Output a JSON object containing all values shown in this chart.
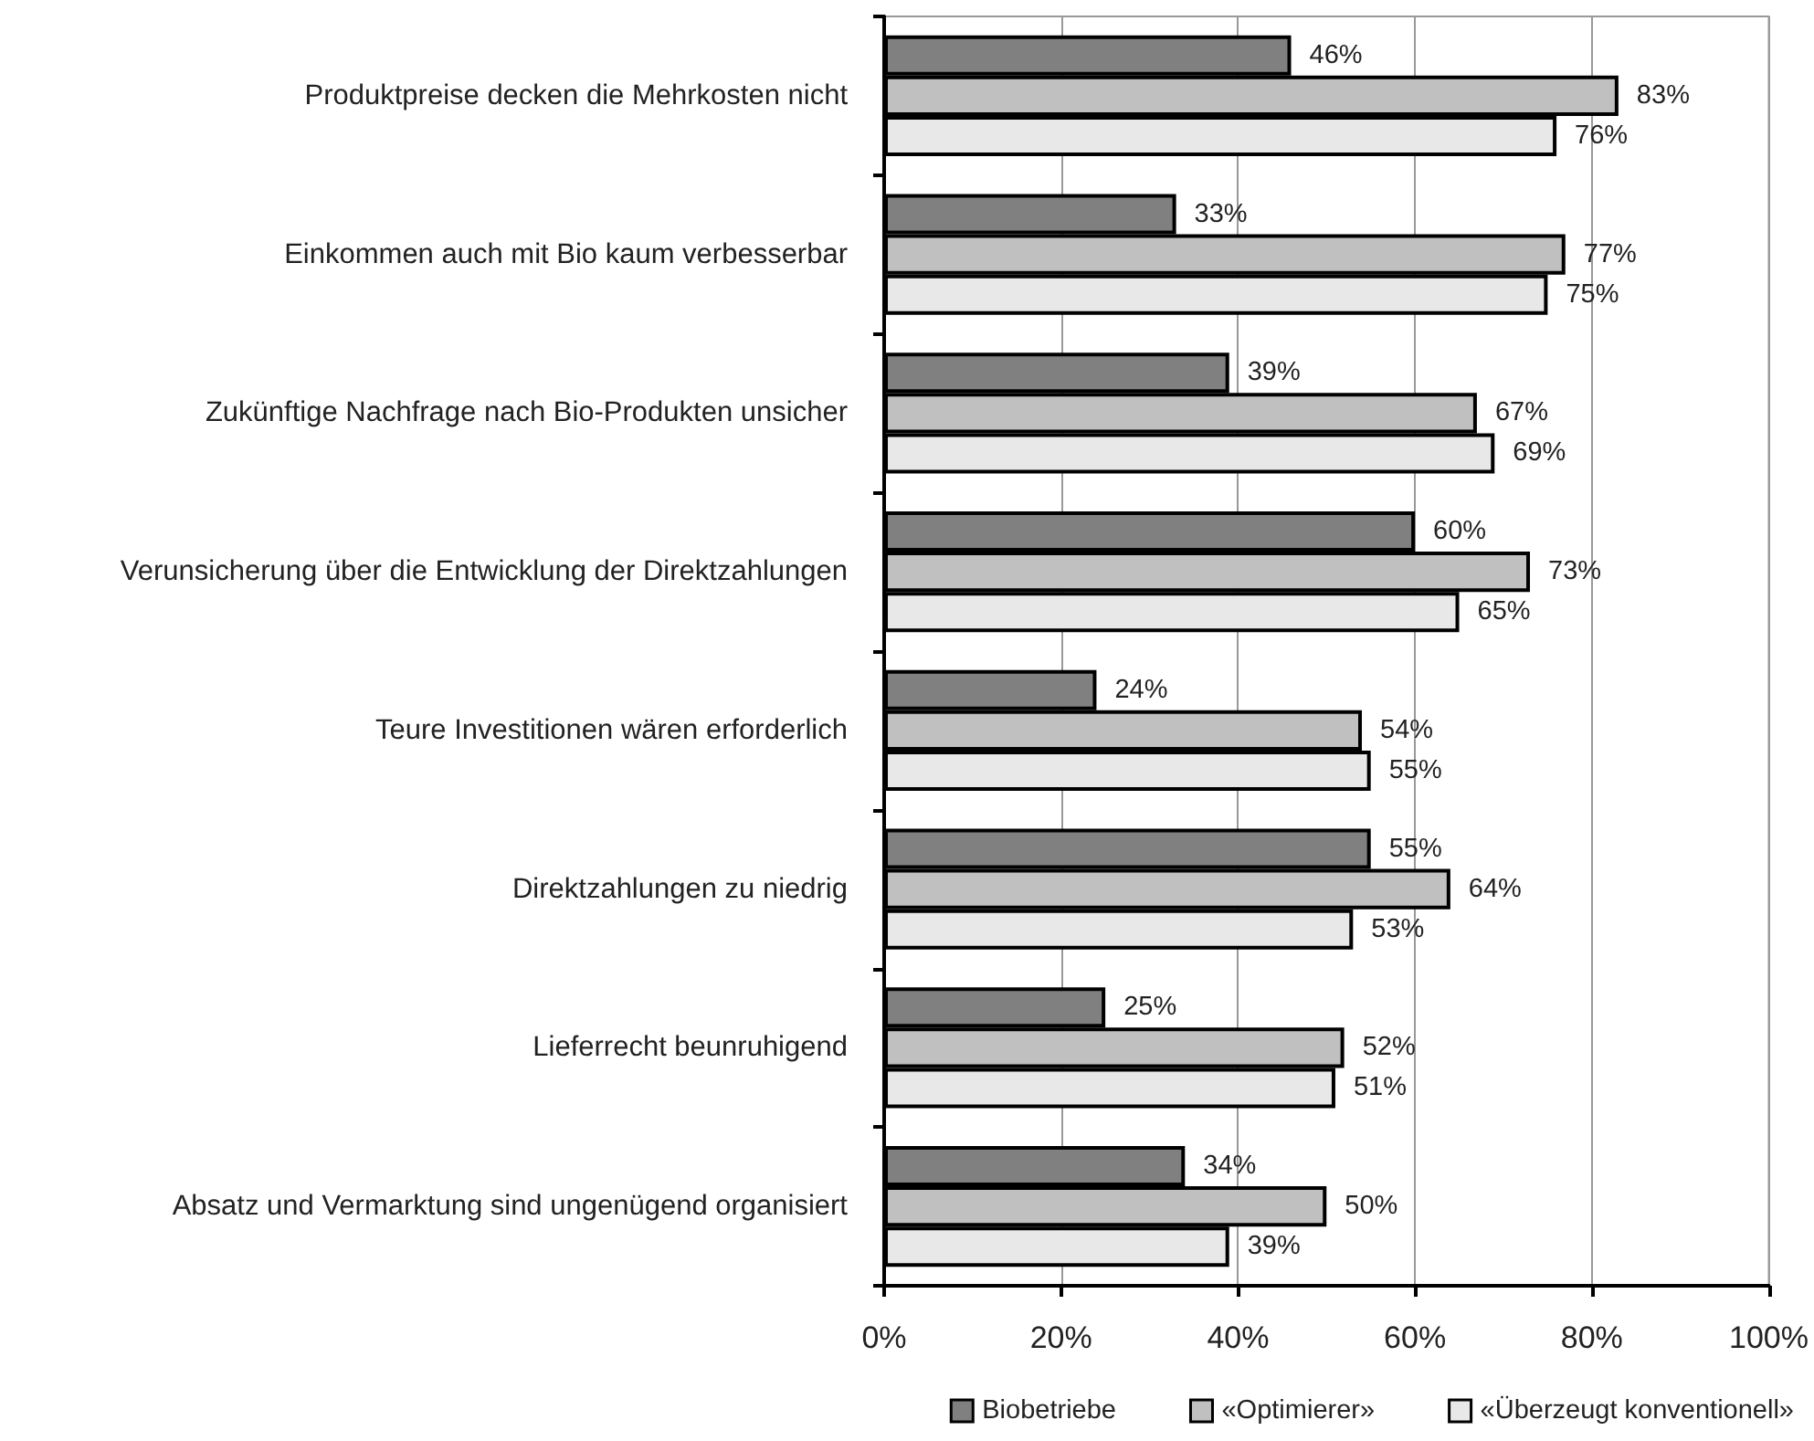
{
  "chart_data": {
    "type": "bar",
    "orientation": "horizontal",
    "categories": [
      "Produktpreise decken die Mehrkosten nicht",
      "Einkommen auch mit Bio kaum verbesserbar",
      "Zukünftige Nachfrage nach Bio-Produkten unsicher",
      "Verunsicherung über die Entwicklung der Direktzahlungen",
      "Teure Investitionen wären erforderlich",
      "Direktzahlungen zu niedrig",
      "Lieferrecht beunruhigend",
      "Absatz und Vermarktung sind ungenügend organisiert"
    ],
    "series": [
      {
        "name": "Biobetriebe",
        "color": "#808080",
        "values": [
          46,
          33,
          39,
          60,
          24,
          55,
          25,
          34
        ],
        "value_labels": [
          "46%",
          "33%",
          "39%",
          "60%",
          "24%",
          "55%",
          "25%",
          "34%"
        ]
      },
      {
        "name": "«Optimierer»",
        "color": "#c0c0c0",
        "values": [
          83,
          77,
          67,
          73,
          54,
          64,
          52,
          50
        ],
        "value_labels": [
          "83%",
          "77%",
          "67%",
          "73%",
          "54%",
          "64%",
          "52%",
          "50%"
        ]
      },
      {
        "name": "«Überzeugt konventionell»",
        "color": "#e8e8e8",
        "values": [
          76,
          75,
          69,
          65,
          55,
          53,
          51,
          39
        ],
        "value_labels": [
          "76%",
          "75%",
          "69%",
          "65%",
          "55%",
          "53%",
          "51%",
          "39%"
        ]
      }
    ],
    "xlim": [
      0,
      100
    ],
    "xticks": [
      {
        "value": 0,
        "label": "0%"
      },
      {
        "value": 20,
        "label": "20%"
      },
      {
        "value": 40,
        "label": "40%"
      },
      {
        "value": 60,
        "label": "60%"
      },
      {
        "value": 80,
        "label": "80%"
      },
      {
        "value": 100,
        "label": "100%"
      }
    ],
    "grid": "x",
    "legend": "bottom right"
  }
}
